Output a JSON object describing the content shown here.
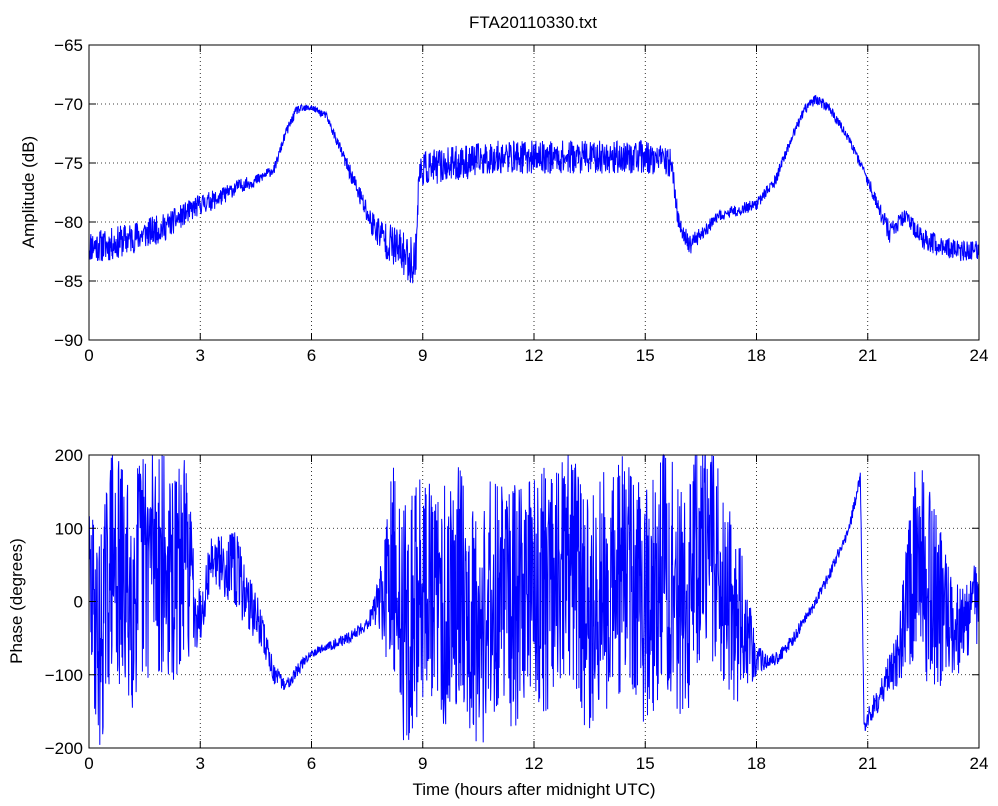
{
  "figure": {
    "title": "FTA20110330.txt",
    "trace_color": "#0000ff"
  },
  "chart_data": [
    {
      "type": "line",
      "title": "FTA20110330.txt",
      "xlabel": "",
      "ylabel": "Amplitude (dB)",
      "xlim": [
        0,
        24
      ],
      "ylim": [
        -90,
        -65
      ],
      "xticks": [
        0,
        3,
        6,
        9,
        12,
        15,
        18,
        21,
        24
      ],
      "yticks": [
        -90,
        -85,
        -80,
        -75,
        -70,
        -65
      ],
      "xtick_labels": [
        "0",
        "3",
        "6",
        "9",
        "12",
        "15",
        "18",
        "21",
        "24"
      ],
      "ytick_labels": [
        "−90",
        "−85",
        "−80",
        "−75",
        "−70",
        "−65"
      ],
      "grid": true,
      "series": [
        {
          "color": "#0000ff",
          "x": [
            0,
            0.5,
            1,
            1.5,
            2,
            2.5,
            3,
            3.5,
            4,
            4.5,
            5,
            5.3,
            5.6,
            6,
            6.4,
            6.8,
            7.2,
            7.6,
            8,
            8.4,
            8.8,
            8.9,
            9,
            10,
            11,
            12,
            13,
            14,
            15,
            15.7,
            15.9,
            16.2,
            16.5,
            17,
            17.5,
            18,
            18.5,
            19,
            19.3,
            19.6,
            20,
            20.4,
            20.8,
            21.2,
            21.6,
            22,
            22.5,
            23,
            23.5,
            24
          ],
          "y": [
            -82,
            -82,
            -81.5,
            -81,
            -80.5,
            -79.5,
            -78.5,
            -78,
            -77,
            -76.5,
            -75.5,
            -72.5,
            -70.5,
            -70.3,
            -71,
            -74,
            -77,
            -80,
            -81.5,
            -82.5,
            -83.5,
            -76,
            -75.5,
            -75,
            -74.5,
            -74.5,
            -74.5,
            -74.5,
            -74.5,
            -75,
            -80,
            -82,
            -81,
            -79.5,
            -79,
            -78.5,
            -76.5,
            -72.5,
            -70.5,
            -69.5,
            -70.5,
            -72.5,
            -75,
            -78,
            -81,
            -79.5,
            -81.5,
            -82,
            -82.5,
            -82.5
          ],
          "noise": [
            1.4,
            1.4,
            1.4,
            1.3,
            1.2,
            1.0,
            0.9,
            0.8,
            0.6,
            0.5,
            0.4,
            0.4,
            0.4,
            0.3,
            0.3,
            0.5,
            0.8,
            1.2,
            1.6,
            1.9,
            2.2,
            1.5,
            1.5,
            1.5,
            1.4,
            1.4,
            1.4,
            1.4,
            1.4,
            1.2,
            0.8,
            0.8,
            0.6,
            0.5,
            0.5,
            0.5,
            0.5,
            0.4,
            0.4,
            0.5,
            0.4,
            0.4,
            0.4,
            0.6,
            0.9,
            0.6,
            0.9,
            0.9,
            0.9,
            0.9
          ]
        }
      ]
    },
    {
      "type": "line",
      "title": "",
      "xlabel": "Time (hours after midnight UTC)",
      "ylabel": "Phase (degrees)",
      "xlim": [
        0,
        24
      ],
      "ylim": [
        -200,
        200
      ],
      "xticks": [
        0,
        3,
        6,
        9,
        12,
        15,
        18,
        21,
        24
      ],
      "yticks": [
        -200,
        -100,
        0,
        100,
        200
      ],
      "xtick_labels": [
        "0",
        "3",
        "6",
        "9",
        "12",
        "15",
        "18",
        "21",
        "24"
      ],
      "ytick_labels": [
        "−200",
        "−100",
        "0",
        "100",
        "200"
      ],
      "grid": true,
      "series": [
        {
          "color": "#0000ff",
          "x": [
            0,
            0.3,
            0.6,
            1,
            1.4,
            1.8,
            2.2,
            2.6,
            3,
            3.3,
            3.6,
            4,
            4.3,
            4.6,
            5,
            5.3,
            5.6,
            6,
            6.5,
            7,
            7.5,
            7.8,
            8.2,
            8.6,
            9,
            9.5,
            10,
            10.5,
            11,
            11.5,
            12,
            12.5,
            13,
            13.5,
            14,
            14.5,
            15,
            15.5,
            16,
            16.5,
            17,
            17.5,
            18,
            18.5,
            19,
            19.5,
            20,
            20.5,
            20.8,
            20.9,
            21.3,
            21.8,
            22.3,
            22.8,
            23.3,
            23.7,
            24
          ],
          "y": [
            20,
            -60,
            60,
            10,
            40,
            80,
            20,
            60,
            -20,
            60,
            50,
            40,
            0,
            -30,
            -100,
            -115,
            -95,
            -70,
            -60,
            -50,
            -30,
            0,
            20,
            -40,
            30,
            -20,
            40,
            -40,
            20,
            -10,
            40,
            0,
            60,
            -30,
            20,
            40,
            -20,
            60,
            -20,
            80,
            40,
            -20,
            -80,
            -80,
            -50,
            -10,
            40,
            100,
            170,
            -170,
            -130,
            -80,
            60,
            0,
            -40,
            -30,
            10
          ],
          "noise": [
            120,
            150,
            160,
            170,
            170,
            170,
            150,
            140,
            40,
            30,
            40,
            60,
            40,
            30,
            15,
            8,
            10,
            6,
            6,
            8,
            10,
            30,
            170,
            170,
            170,
            170,
            170,
            170,
            170,
            170,
            170,
            170,
            160,
            170,
            170,
            170,
            170,
            170,
            170,
            170,
            140,
            130,
            20,
            10,
            10,
            8,
            8,
            8,
            10,
            10,
            20,
            40,
            140,
            140,
            60,
            70,
            60
          ]
        }
      ]
    }
  ]
}
